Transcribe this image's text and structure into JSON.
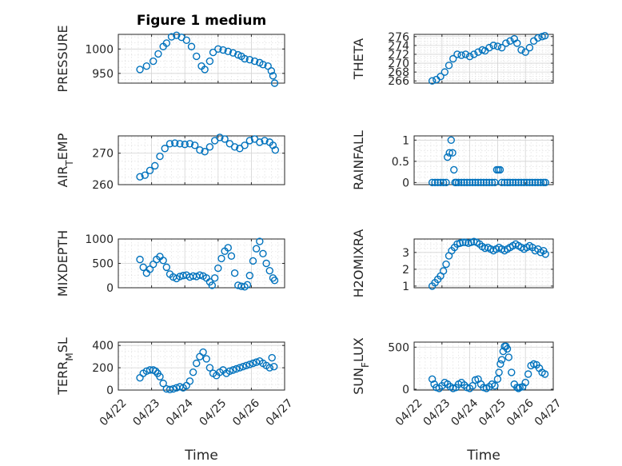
{
  "figure": {
    "title": "Figure 1 medium",
    "marker_color": "#0072BD"
  },
  "chart_data": [
    {
      "type": "scatter",
      "ylabel": "PRESSURE",
      "ylim": [
        930,
        1030
      ],
      "yticks": [
        950,
        1000
      ],
      "yticklabels": [
        "950",
        "1000"
      ],
      "xlim": [
        0,
        5
      ],
      "xticks": [
        0,
        1,
        2,
        3,
        4,
        5
      ],
      "xticklabels": [
        "04/22",
        "04/23",
        "04/24",
        "04/25",
        "04/26",
        "04/27"
      ],
      "show_xticklabels": false,
      "xlabel": "",
      "series": [
        {
          "x": [
            0.65,
            0.85,
            1.05,
            1.2,
            1.35,
            1.45,
            1.6,
            1.75,
            1.9,
            2.05,
            2.2,
            2.35,
            2.5,
            2.6,
            2.75,
            2.85,
            3.0,
            3.15,
            3.3,
            3.45,
            3.6,
            3.7,
            3.8,
            3.95,
            4.1,
            4.25,
            4.35,
            4.5,
            4.6,
            4.65,
            4.7
          ],
          "y": [
            958,
            965,
            975,
            990,
            1005,
            1012,
            1025,
            1028,
            1024,
            1018,
            1005,
            985,
            965,
            958,
            975,
            993,
            1000,
            998,
            995,
            992,
            988,
            985,
            980,
            978,
            975,
            972,
            968,
            965,
            955,
            945,
            930
          ]
        }
      ]
    },
    {
      "type": "scatter",
      "ylabel": "THETA",
      "ylim": [
        265.5,
        276.5
      ],
      "yticks": [
        266,
        268,
        270,
        272,
        274,
        276
      ],
      "yticklabels": [
        "266",
        "268",
        "270",
        "272",
        "274",
        "276"
      ],
      "xlim": [
        0,
        5
      ],
      "xticks": [
        0,
        1,
        2,
        3,
        4,
        5
      ],
      "xticklabels": [
        "04/22",
        "04/23",
        "04/24",
        "04/25",
        "04/26",
        "04/27"
      ],
      "show_xticklabels": false,
      "xlabel": "",
      "series": [
        {
          "x": [
            0.65,
            0.8,
            0.95,
            1.1,
            1.25,
            1.4,
            1.55,
            1.7,
            1.85,
            2.0,
            2.15,
            2.3,
            2.45,
            2.55,
            2.7,
            2.85,
            3.0,
            3.15,
            3.3,
            3.45,
            3.6,
            3.7,
            3.85,
            4.0,
            4.15,
            4.3,
            4.45,
            4.6,
            4.7
          ],
          "y": [
            266,
            266.3,
            267,
            268,
            269.5,
            271,
            272,
            271.8,
            272,
            271.5,
            272,
            272.5,
            273,
            272.8,
            273.5,
            274,
            273.8,
            273.5,
            274.5,
            275,
            275.5,
            274.5,
            273,
            272.5,
            273.5,
            275,
            275.7,
            276,
            276.2
          ]
        }
      ]
    },
    {
      "type": "scatter",
      "ylabel": "AIR_TEMP",
      "ylim": [
        260,
        275.5
      ],
      "yticks": [
        260,
        270
      ],
      "yticklabels": [
        "260",
        "270"
      ],
      "xlim": [
        0,
        5
      ],
      "xticks": [
        0,
        1,
        2,
        3,
        4,
        5
      ],
      "xticklabels": [
        "04/22",
        "04/23",
        "04/24",
        "04/25",
        "04/26",
        "04/27"
      ],
      "show_xticklabels": false,
      "xlabel": "",
      "series": [
        {
          "x": [
            0.65,
            0.8,
            0.95,
            1.1,
            1.25,
            1.4,
            1.55,
            1.7,
            1.85,
            2.0,
            2.15,
            2.3,
            2.45,
            2.6,
            2.75,
            2.9,
            3.05,
            3.2,
            3.35,
            3.5,
            3.65,
            3.8,
            3.95,
            4.1,
            4.25,
            4.4,
            4.55,
            4.65,
            4.72
          ],
          "y": [
            262.5,
            263,
            264.5,
            266,
            269,
            271.5,
            273,
            273.2,
            273,
            272.8,
            273,
            272.5,
            271,
            270.5,
            272,
            274,
            275,
            274.5,
            273,
            272,
            271.5,
            272.5,
            274,
            274.5,
            273.5,
            274,
            273.5,
            272.5,
            271
          ]
        }
      ]
    },
    {
      "type": "scatter",
      "ylabel": "RAINFALL",
      "ylim": [
        -0.05,
        1.1
      ],
      "yticks": [
        0,
        0.5,
        1
      ],
      "yticklabels": [
        "0",
        "0.5",
        "1"
      ],
      "xlim": [
        0,
        5
      ],
      "xticks": [
        0,
        1,
        2,
        3,
        4,
        5
      ],
      "xticklabels": [
        "04/22",
        "04/23",
        "04/24",
        "04/25",
        "04/26",
        "04/27"
      ],
      "show_xticklabels": false,
      "xlabel": "",
      "series": [
        {
          "x": [
            0.65,
            0.75,
            0.85,
            0.95,
            1.05,
            1.15,
            1.2,
            1.27,
            1.33,
            1.38,
            1.43,
            1.47,
            1.52,
            1.6,
            1.7,
            1.8,
            1.9,
            2.0,
            2.1,
            2.2,
            2.3,
            2.4,
            2.5,
            2.6,
            2.7,
            2.8,
            2.9,
            2.97,
            3.03,
            3.09,
            3.15,
            3.25,
            3.35,
            3.45,
            3.55,
            3.65,
            3.75,
            3.85,
            3.95,
            4.05,
            4.15,
            4.25,
            4.35,
            4.45,
            4.55,
            4.65,
            4.72
          ],
          "y": [
            0,
            0,
            0,
            0,
            0,
            0,
            0.6,
            0.7,
            1.0,
            0.7,
            0.3,
            0,
            0,
            0,
            0,
            0,
            0,
            0,
            0,
            0,
            0,
            0,
            0,
            0,
            0,
            0,
            0,
            0.3,
            0.3,
            0.3,
            0,
            0,
            0,
            0,
            0,
            0,
            0,
            0,
            0,
            0,
            0,
            0,
            0,
            0,
            0,
            0,
            0
          ]
        }
      ]
    },
    {
      "type": "scatter",
      "ylabel": "MIXDEPTH",
      "ylim": [
        0,
        1000
      ],
      "yticks": [
        0,
        500,
        1000
      ],
      "yticklabels": [
        "0",
        "500",
        "1000"
      ],
      "xlim": [
        0,
        5
      ],
      "xticks": [
        0,
        1,
        2,
        3,
        4,
        5
      ],
      "xticklabels": [
        "04/22",
        "04/23",
        "04/24",
        "04/25",
        "04/26",
        "04/27"
      ],
      "show_xticklabels": false,
      "xlabel": "",
      "series": [
        {
          "x": [
            0.65,
            0.75,
            0.85,
            0.95,
            1.05,
            1.15,
            1.25,
            1.35,
            1.45,
            1.55,
            1.65,
            1.75,
            1.85,
            1.95,
            2.05,
            2.15,
            2.25,
            2.35,
            2.45,
            2.55,
            2.65,
            2.75,
            2.82,
            2.9,
            3.0,
            3.1,
            3.2,
            3.3,
            3.4,
            3.5,
            3.6,
            3.7,
            3.8,
            3.88,
            3.95,
            4.05,
            4.15,
            4.25,
            4.35,
            4.45,
            4.55,
            4.65,
            4.7
          ],
          "y": [
            580,
            420,
            300,
            380,
            480,
            580,
            640,
            560,
            420,
            280,
            220,
            190,
            230,
            250,
            260,
            220,
            240,
            230,
            260,
            240,
            200,
            120,
            50,
            200,
            400,
            600,
            750,
            820,
            650,
            300,
            50,
            30,
            20,
            60,
            250,
            550,
            800,
            950,
            700,
            500,
            350,
            200,
            150
          ]
        }
      ]
    },
    {
      "type": "scatter",
      "ylabel": "H2OMIXRA",
      "ylim": [
        0.9,
        3.8
      ],
      "yticks": [
        1,
        2,
        3
      ],
      "yticklabels": [
        "1",
        "2",
        "3"
      ],
      "xlim": [
        0,
        5
      ],
      "xticks": [
        0,
        1,
        2,
        3,
        4,
        5
      ],
      "xticklabels": [
        "04/22",
        "04/23",
        "04/24",
        "04/25",
        "04/26",
        "04/27"
      ],
      "show_xticklabels": false,
      "xlabel": "",
      "series": [
        {
          "x": [
            0.65,
            0.75,
            0.85,
            0.95,
            1.05,
            1.15,
            1.25,
            1.35,
            1.45,
            1.55,
            1.65,
            1.75,
            1.85,
            1.95,
            2.05,
            2.15,
            2.25,
            2.35,
            2.45,
            2.55,
            2.65,
            2.75,
            2.85,
            2.95,
            3.05,
            3.15,
            3.25,
            3.35,
            3.45,
            3.55,
            3.65,
            3.75,
            3.85,
            3.95,
            4.05,
            4.15,
            4.25,
            4.35,
            4.45,
            4.55,
            4.65,
            4.72
          ],
          "y": [
            1.0,
            1.2,
            1.4,
            1.6,
            1.9,
            2.3,
            2.8,
            3.1,
            3.3,
            3.5,
            3.55,
            3.6,
            3.6,
            3.55,
            3.6,
            3.65,
            3.6,
            3.5,
            3.35,
            3.25,
            3.3,
            3.2,
            3.1,
            3.2,
            3.3,
            3.2,
            3.1,
            3.2,
            3.3,
            3.4,
            3.5,
            3.4,
            3.3,
            3.2,
            3.3,
            3.4,
            3.3,
            3.1,
            3.2,
            3.0,
            3.1,
            2.9
          ]
        }
      ]
    },
    {
      "type": "scatter",
      "ylabel": "TERR_MSL",
      "ylim": [
        0,
        430
      ],
      "yticks": [
        0,
        200,
        400
      ],
      "yticklabels": [
        "0",
        "200",
        "400"
      ],
      "xlim": [
        0,
        5
      ],
      "xticks": [
        0,
        1,
        2,
        3,
        4,
        5
      ],
      "xticklabels": [
        "04/22",
        "04/23",
        "04/24",
        "04/25",
        "04/26",
        "04/27"
      ],
      "show_xticklabels": true,
      "xlabel": "Time",
      "series": [
        {
          "x": [
            0.65,
            0.75,
            0.85,
            0.95,
            1.05,
            1.12,
            1.18,
            1.25,
            1.35,
            1.45,
            1.55,
            1.65,
            1.75,
            1.85,
            1.95,
            2.05,
            2.15,
            2.25,
            2.35,
            2.45,
            2.55,
            2.65,
            2.75,
            2.85,
            2.95,
            3.05,
            3.15,
            3.25,
            3.35,
            3.45,
            3.55,
            3.65,
            3.75,
            3.85,
            3.95,
            4.05,
            4.15,
            4.25,
            4.35,
            4.45,
            4.55,
            4.62,
            4.68
          ],
          "y": [
            110,
            150,
            170,
            180,
            180,
            170,
            150,
            120,
            60,
            10,
            5,
            10,
            20,
            30,
            20,
            40,
            80,
            160,
            240,
            300,
            340,
            280,
            200,
            150,
            130,
            160,
            180,
            150,
            170,
            180,
            190,
            200,
            210,
            220,
            230,
            240,
            250,
            260,
            240,
            220,
            200,
            290,
            210
          ]
        }
      ]
    },
    {
      "type": "scatter",
      "ylabel": "SUN_FLUX",
      "ylim": [
        -10,
        560
      ],
      "yticks": [
        0,
        500
      ],
      "yticklabels": [
        "0",
        "500"
      ],
      "xlim": [
        0,
        5
      ],
      "xticks": [
        0,
        1,
        2,
        3,
        4,
        5
      ],
      "xticklabels": [
        "04/22",
        "04/23",
        "04/24",
        "04/25",
        "04/26",
        "04/27"
      ],
      "show_xticklabels": true,
      "xlabel": "Time",
      "series": [
        {
          "x": [
            0.65,
            0.72,
            0.8,
            0.9,
            1.0,
            1.1,
            1.2,
            1.3,
            1.4,
            1.5,
            1.6,
            1.7,
            1.8,
            1.9,
            2.0,
            2.1,
            2.2,
            2.3,
            2.4,
            2.5,
            2.6,
            2.7,
            2.8,
            2.9,
            3.0,
            3.05,
            3.1,
            3.15,
            3.2,
            3.25,
            3.3,
            3.35,
            3.4,
            3.5,
            3.6,
            3.7,
            3.75,
            3.8,
            3.9,
            4.0,
            4.1,
            4.2,
            4.3,
            4.4,
            4.5,
            4.6,
            4.7
          ],
          "y": [
            120,
            60,
            20,
            10,
            40,
            80,
            60,
            30,
            10,
            20,
            60,
            80,
            50,
            20,
            10,
            40,
            110,
            120,
            60,
            20,
            10,
            30,
            60,
            40,
            120,
            200,
            300,
            350,
            450,
            510,
            510,
            480,
            380,
            200,
            60,
            20,
            10,
            20,
            30,
            80,
            180,
            280,
            300,
            290,
            250,
            200,
            180
          ]
        }
      ]
    }
  ]
}
